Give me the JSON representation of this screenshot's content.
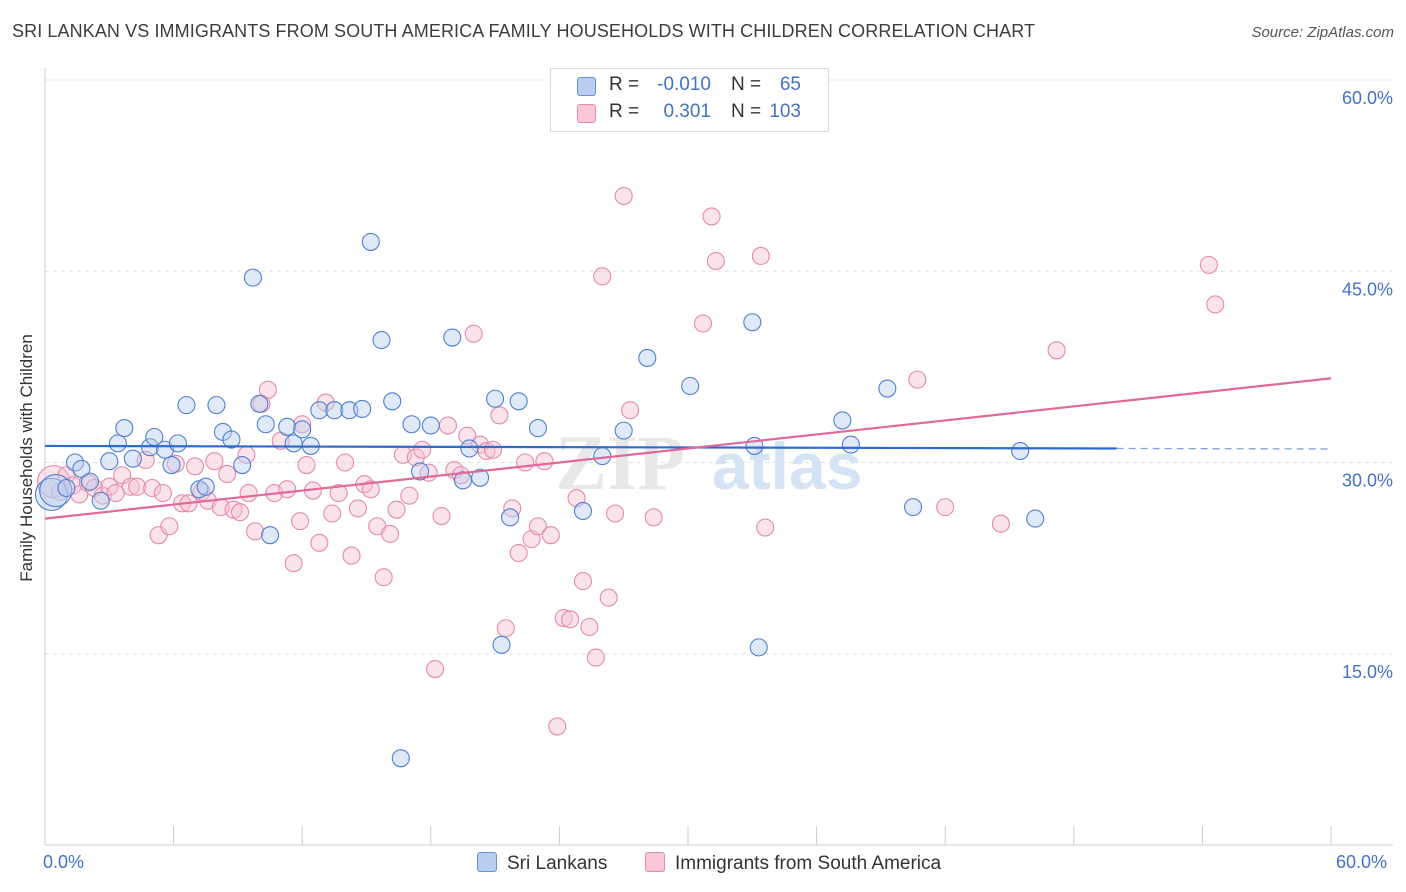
{
  "title": "SRI LANKAN VS IMMIGRANTS FROM SOUTH AMERICA FAMILY HOUSEHOLDS WITH CHILDREN CORRELATION CHART",
  "source": "Source: ZipAtlas.com",
  "watermark": "ZIPatlas",
  "colors": {
    "blue": "#4472c4",
    "blue_fill": "#a9c4eb",
    "pink": "#e0699a",
    "pink_fill": "#f4b8cb",
    "grid": "#dddddd",
    "axis_text": "#4472c4"
  },
  "legend": {
    "rows": [
      {
        "r_label": "R = ",
        "r_value": "-0.010",
        "n_label": "N = ",
        "n_value": "65"
      },
      {
        "r_label": "R = ",
        "r_value": "0.301",
        "n_label": "N = ",
        "n_value": "103"
      }
    ]
  },
  "chart_data": {
    "type": "scatter",
    "title": "SRI LANKAN VS IMMIGRANTS FROM SOUTH AMERICA FAMILY HOUSEHOLDS WITH CHILDREN CORRELATION CHART",
    "xlabel": "",
    "ylabel": "Family Households with Children",
    "xlim": [
      0,
      60
    ],
    "ylim": [
      0,
      60
    ],
    "x_tick_labels": [
      "0.0%",
      "60.0%"
    ],
    "y_ticks": [
      15,
      30,
      45,
      60
    ],
    "y_tick_labels": [
      "15.0%",
      "30.0%",
      "45.0%",
      "60.0%"
    ],
    "grid": true,
    "legend_position": "top-center",
    "series": [
      {
        "name": "Sri Lankans",
        "color": "#4472c4",
        "R": -0.01,
        "N": 65,
        "trend": {
          "x": [
            0,
            50
          ],
          "y": [
            31.3,
            31.1
          ],
          "dashed_to": 60
        },
        "points": [
          [
            0.3,
            27.5
          ],
          [
            0.5,
            27.8
          ],
          [
            1.0,
            28.0
          ],
          [
            1.4,
            30.0
          ],
          [
            1.7,
            29.5
          ],
          [
            2.1,
            28.5
          ],
          [
            2.6,
            27.0
          ],
          [
            3.0,
            30.1
          ],
          [
            3.4,
            31.5
          ],
          [
            3.7,
            32.7
          ],
          [
            4.1,
            30.3
          ],
          [
            4.9,
            31.2
          ],
          [
            5.1,
            32.0
          ],
          [
            5.6,
            31.0
          ],
          [
            5.9,
            29.8
          ],
          [
            6.2,
            31.5
          ],
          [
            6.6,
            34.5
          ],
          [
            7.2,
            27.9
          ],
          [
            7.5,
            28.1
          ],
          [
            8.0,
            34.5
          ],
          [
            8.3,
            32.4
          ],
          [
            8.7,
            31.8
          ],
          [
            9.2,
            29.8
          ],
          [
            9.7,
            44.5
          ],
          [
            10.0,
            34.6
          ],
          [
            10.3,
            33.0
          ],
          [
            10.5,
            24.3
          ],
          [
            11.3,
            32.8
          ],
          [
            11.6,
            31.5
          ],
          [
            12.0,
            32.6
          ],
          [
            12.4,
            31.3
          ],
          [
            12.8,
            34.1
          ],
          [
            13.5,
            34.1
          ],
          [
            14.2,
            34.1
          ],
          [
            14.8,
            34.2
          ],
          [
            15.2,
            47.3
          ],
          [
            15.7,
            39.6
          ],
          [
            16.2,
            34.8
          ],
          [
            16.6,
            6.8
          ],
          [
            17.1,
            33.0
          ],
          [
            17.5,
            29.3
          ],
          [
            18.0,
            32.9
          ],
          [
            19.0,
            39.8
          ],
          [
            19.5,
            28.6
          ],
          [
            19.8,
            31.1
          ],
          [
            20.3,
            28.8
          ],
          [
            21.0,
            35.0
          ],
          [
            21.3,
            15.7
          ],
          [
            21.7,
            25.7
          ],
          [
            22.1,
            34.8
          ],
          [
            23.0,
            32.7
          ],
          [
            25.1,
            26.2
          ],
          [
            26.0,
            30.5
          ],
          [
            27.0,
            32.5
          ],
          [
            28.1,
            38.2
          ],
          [
            30.1,
            36.0
          ],
          [
            33.0,
            41.0
          ],
          [
            33.1,
            31.3
          ],
          [
            33.3,
            15.5
          ],
          [
            37.2,
            33.3
          ],
          [
            37.6,
            31.4
          ],
          [
            39.3,
            35.8
          ],
          [
            40.5,
            26.5
          ],
          [
            45.5,
            30.9
          ],
          [
            46.2,
            25.6
          ]
        ]
      },
      {
        "name": "Immigrants from South America",
        "color": "#e0699a",
        "R": 0.301,
        "N": 103,
        "trend": {
          "x": [
            0,
            60
          ],
          "y": [
            25.6,
            36.6
          ]
        },
        "points": [
          [
            0.4,
            28.5
          ],
          [
            0.7,
            27.7
          ],
          [
            1.0,
            29.0
          ],
          [
            1.3,
            28.2
          ],
          [
            1.6,
            27.5
          ],
          [
            2.0,
            28.4
          ],
          [
            2.3,
            28.0
          ],
          [
            2.7,
            27.4
          ],
          [
            3.0,
            28.1
          ],
          [
            3.3,
            27.6
          ],
          [
            3.6,
            29.0
          ],
          [
            4.0,
            28.1
          ],
          [
            4.3,
            28.1
          ],
          [
            4.7,
            30.2
          ],
          [
            5.0,
            28.0
          ],
          [
            5.3,
            24.3
          ],
          [
            5.5,
            27.6
          ],
          [
            5.8,
            25.0
          ],
          [
            6.1,
            29.9
          ],
          [
            6.4,
            26.8
          ],
          [
            6.7,
            26.8
          ],
          [
            7.0,
            29.7
          ],
          [
            7.3,
            27.7
          ],
          [
            7.6,
            27.0
          ],
          [
            7.9,
            30.1
          ],
          [
            8.2,
            26.5
          ],
          [
            8.5,
            29.1
          ],
          [
            8.8,
            26.3
          ],
          [
            9.1,
            26.1
          ],
          [
            9.4,
            30.6
          ],
          [
            9.8,
            24.6
          ],
          [
            10.1,
            34.6
          ],
          [
            10.4,
            35.7
          ],
          [
            10.7,
            27.6
          ],
          [
            11.0,
            31.7
          ],
          [
            11.3,
            27.9
          ],
          [
            11.6,
            22.1
          ],
          [
            11.9,
            25.4
          ],
          [
            12.2,
            29.8
          ],
          [
            12.5,
            27.8
          ],
          [
            12.8,
            23.7
          ],
          [
            13.1,
            34.7
          ],
          [
            13.4,
            26.0
          ],
          [
            13.7,
            27.6
          ],
          [
            14.0,
            30.0
          ],
          [
            14.3,
            22.7
          ],
          [
            14.6,
            26.4
          ],
          [
            14.9,
            28.3
          ],
          [
            15.2,
            27.9
          ],
          [
            15.5,
            25.0
          ],
          [
            15.8,
            21.0
          ],
          [
            16.1,
            24.4
          ],
          [
            16.4,
            26.3
          ],
          [
            16.7,
            30.6
          ],
          [
            17.0,
            27.4
          ],
          [
            17.3,
            30.4
          ],
          [
            17.6,
            31.0
          ],
          [
            17.9,
            29.2
          ],
          [
            18.2,
            13.8
          ],
          [
            18.5,
            25.8
          ],
          [
            18.8,
            32.9
          ],
          [
            19.1,
            29.4
          ],
          [
            19.4,
            29.0
          ],
          [
            19.7,
            32.1
          ],
          [
            20.0,
            40.1
          ],
          [
            20.3,
            31.4
          ],
          [
            20.6,
            30.9
          ],
          [
            20.9,
            31.0
          ],
          [
            21.2,
            33.7
          ],
          [
            21.5,
            17.0
          ],
          [
            21.8,
            26.4
          ],
          [
            22.1,
            22.9
          ],
          [
            22.4,
            30.0
          ],
          [
            22.7,
            24.0
          ],
          [
            23.0,
            25.0
          ],
          [
            23.3,
            30.1
          ],
          [
            23.6,
            24.3
          ],
          [
            23.9,
            9.3
          ],
          [
            24.2,
            17.8
          ],
          [
            24.5,
            17.7
          ],
          [
            24.8,
            27.2
          ],
          [
            25.1,
            20.7
          ],
          [
            25.4,
            17.1
          ],
          [
            25.7,
            14.7
          ],
          [
            26.0,
            44.6
          ],
          [
            26.3,
            19.4
          ],
          [
            26.6,
            26.0
          ],
          [
            27.0,
            50.9
          ],
          [
            27.3,
            34.1
          ],
          [
            28.4,
            25.7
          ],
          [
            30.7,
            40.9
          ],
          [
            31.1,
            49.3
          ],
          [
            31.3,
            45.8
          ],
          [
            33.4,
            46.2
          ],
          [
            33.6,
            24.9
          ],
          [
            40.7,
            36.5
          ],
          [
            42.0,
            26.5
          ],
          [
            44.6,
            25.2
          ],
          [
            47.2,
            38.8
          ],
          [
            54.3,
            45.5
          ],
          [
            54.6,
            42.4
          ],
          [
            9.5,
            27.6
          ],
          [
            12.0,
            33.0
          ]
        ]
      }
    ]
  },
  "bottom_legend": {
    "items": [
      {
        "label": "Sri Lankans"
      },
      {
        "label": "Immigrants from South America"
      }
    ]
  },
  "axes": {
    "ylabel": "Family Households with Children",
    "x_left": "0.0%",
    "x_right": "60.0%"
  }
}
